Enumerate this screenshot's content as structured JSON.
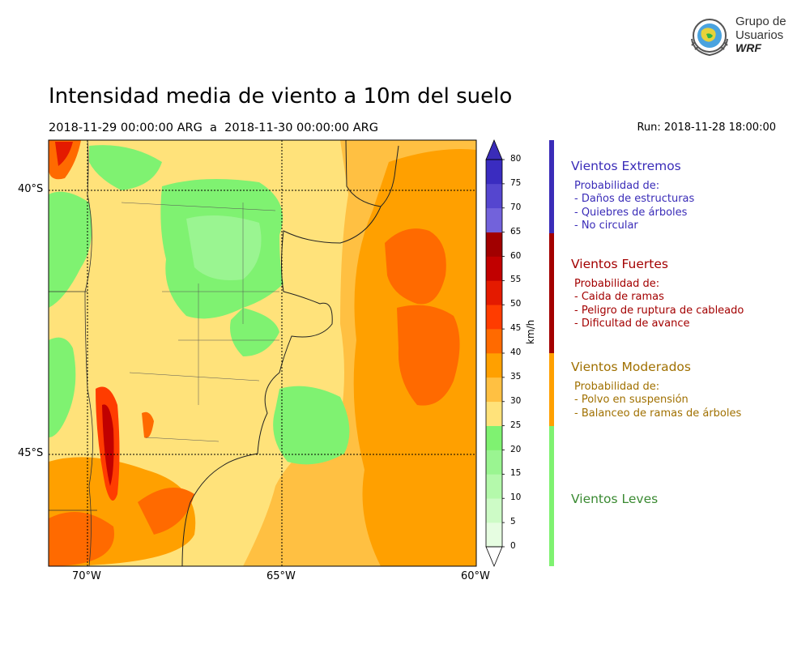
{
  "title": "Intensidad media de viento a 10m del suelo",
  "period": "2018-11-29 00:00:00 ARG  a  2018-11-30 00:00:00 ARG",
  "run": "Run: 2018-11-28 18:00:00",
  "logo": {
    "line1": "Grupo de",
    "line2": "Usuarios",
    "line3": "WRF"
  },
  "map": {
    "lon_range": [
      -71,
      -60
    ],
    "lat_range": [
      -47.1,
      -39.0
    ],
    "lat_labels": [
      "40°S",
      "45°S"
    ],
    "lon_labels": [
      "70°W",
      "65°W",
      "60°W"
    ]
  },
  "colorbar": {
    "unit": "km/h",
    "ticks": [
      "0",
      "5",
      "10",
      "15",
      "20",
      "25",
      "30",
      "35",
      "40",
      "45",
      "50",
      "55",
      "60",
      "65",
      "70",
      "75",
      "80"
    ],
    "colors": [
      "#e6fde1",
      "#cdfbc6",
      "#b4f9ab",
      "#9af591",
      "#7ff271",
      "#ffe27a",
      "#ffc042",
      "#ffa000",
      "#ff6a00",
      "#ff3c00",
      "#e41a00",
      "#c10000",
      "#a10000",
      "#7262db",
      "#5546cf",
      "#3a2cc0"
    ],
    "under_color": "#ffffff",
    "over_color": "#3a2cb8"
  },
  "categories": [
    {
      "name": "Vientos Extremos",
      "color": "#3a2cb8",
      "lines": [
        "Probabilidad de:",
        "- Daños de estructuras",
        "- Quiebres de árboles",
        "- No circular"
      ]
    },
    {
      "name": "Vientos Fuertes",
      "color": "#a30000",
      "lines": [
        "Probabilidad de:",
        "- Caida de ramas",
        "- Peligro de ruptura de cableado",
        "- Dificultad de avance"
      ]
    },
    {
      "name": "Vientos Moderados",
      "color": "#a07000",
      "bar_color": "#ffa000",
      "lines": [
        "Probabilidad de:",
        "- Polvo en suspensión",
        "- Balanceo de ramas de árboles"
      ]
    },
    {
      "name": "Vientos Leves",
      "color": "#3a8a32",
      "bar_color": "#7ff271",
      "lines": []
    }
  ]
}
